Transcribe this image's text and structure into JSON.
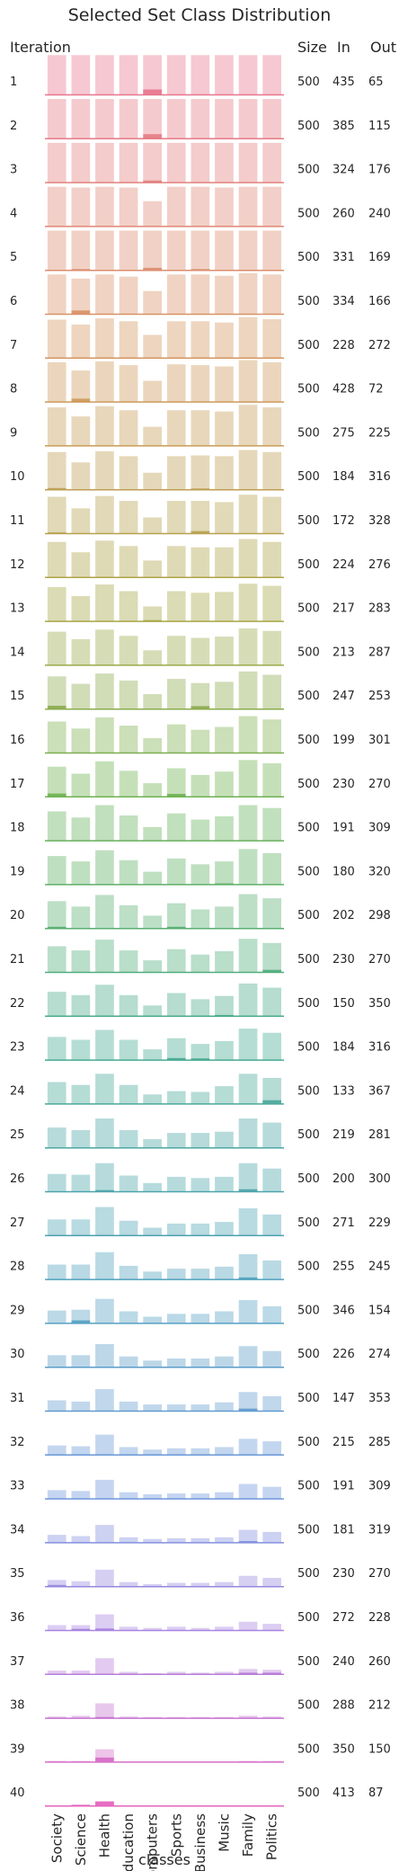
{
  "title": "Selected Set Class Distribution",
  "headers": {
    "iteration": "Iteration",
    "size": "Size",
    "in": "In",
    "out": "Out"
  },
  "chart_data": {
    "type": "bar",
    "title": "Selected Set Class Distribution",
    "xlabel": "classes",
    "ylabel": "Iteration",
    "categories": [
      "Society",
      "Science",
      "Health",
      "Education",
      "Computers",
      "Sports",
      "Business",
      "Music",
      "Family",
      "Politics"
    ],
    "legend": "none",
    "grid": false,
    "note": "Per iteration: background bars = class distribution of the full pool; dark bars = class distribution of samples added in that iteration",
    "iterations": [
      {
        "iteration": 1,
        "size": 500,
        "in": 435,
        "out": 65,
        "pool": [
          0.95,
          0.95,
          0.95,
          0.95,
          0.95,
          0.95,
          0.95,
          0.95,
          0.95,
          0.95
        ],
        "added": [
          0,
          0,
          0,
          0,
          0.12,
          0,
          0,
          0,
          0,
          0
        ]
      },
      {
        "iteration": 2,
        "size": 500,
        "in": 385,
        "out": 115,
        "pool": [
          0.95,
          0.95,
          0.95,
          0.95,
          0.95,
          0.95,
          0.95,
          0.95,
          0.95,
          0.95
        ],
        "added": [
          0,
          0,
          0,
          0,
          0.1,
          0,
          0,
          0,
          0,
          0
        ]
      },
      {
        "iteration": 3,
        "size": 500,
        "in": 324,
        "out": 176,
        "pool": [
          0.95,
          0.95,
          0.95,
          0.95,
          0.95,
          0.95,
          0.95,
          0.95,
          0.95,
          0.95
        ],
        "added": [
          0,
          0,
          0,
          0,
          0.04,
          0,
          0,
          0,
          0,
          0
        ]
      },
      {
        "iteration": 4,
        "size": 500,
        "in": 260,
        "out": 240,
        "pool": [
          0.95,
          0.93,
          0.95,
          0.93,
          0.6,
          0.95,
          0.95,
          0.93,
          0.95,
          0.95
        ],
        "added": [
          0,
          0,
          0,
          0,
          0,
          0,
          0,
          0,
          0,
          0
        ]
      },
      {
        "iteration": 5,
        "size": 500,
        "in": 331,
        "out": 169,
        "pool": [
          0.95,
          0.95,
          0.95,
          0.95,
          0.95,
          0.95,
          0.95,
          0.95,
          0.95,
          0.95
        ],
        "added": [
          0,
          0.02,
          0,
          0,
          0.05,
          0,
          0.02,
          0,
          0,
          0
        ]
      },
      {
        "iteration": 6,
        "size": 500,
        "in": 334,
        "out": 166,
        "pool": [
          0.95,
          0.85,
          0.95,
          0.9,
          0.55,
          0.95,
          0.95,
          0.92,
          0.98,
          0.95
        ],
        "added": [
          0,
          0.08,
          0,
          0,
          0,
          0,
          0,
          0,
          0,
          0
        ]
      },
      {
        "iteration": 7,
        "size": 500,
        "in": 228,
        "out": 272,
        "pool": [
          0.92,
          0.8,
          0.95,
          0.88,
          0.55,
          0.88,
          0.88,
          0.85,
          0.98,
          0.93
        ],
        "added": [
          0,
          0,
          0,
          0,
          0,
          0,
          0,
          0,
          0,
          0
        ]
      },
      {
        "iteration": 8,
        "size": 500,
        "in": 428,
        "out": 72,
        "pool": [
          0.95,
          0.75,
          0.97,
          0.88,
          0.5,
          0.9,
          0.88,
          0.85,
          1.0,
          0.95
        ],
        "added": [
          0,
          0.07,
          0,
          0,
          0,
          0,
          0,
          0,
          0,
          0
        ]
      },
      {
        "iteration": 9,
        "size": 500,
        "in": 275,
        "out": 225,
        "pool": [
          0.92,
          0.7,
          0.95,
          0.85,
          0.45,
          0.85,
          0.85,
          0.82,
          0.98,
          0.92
        ],
        "added": [
          0,
          0,
          0,
          0,
          0,
          0,
          0,
          0,
          0,
          0
        ]
      },
      {
        "iteration": 10,
        "size": 500,
        "in": 184,
        "out": 316,
        "pool": [
          0.9,
          0.65,
          0.92,
          0.8,
          0.4,
          0.8,
          0.82,
          0.8,
          0.95,
          0.9
        ],
        "added": [
          0.03,
          0,
          0,
          0,
          0,
          0,
          0.02,
          0,
          0,
          0
        ]
      },
      {
        "iteration": 11,
        "size": 500,
        "in": 172,
        "out": 328,
        "pool": [
          0.88,
          0.6,
          0.9,
          0.78,
          0.38,
          0.78,
          0.78,
          0.75,
          0.93,
          0.88
        ],
        "added": [
          0.02,
          0,
          0,
          0,
          0,
          0,
          0.05,
          0,
          0,
          0
        ]
      },
      {
        "iteration": 12,
        "size": 500,
        "in": 224,
        "out": 276,
        "pool": [
          0.85,
          0.6,
          0.88,
          0.75,
          0.4,
          0.75,
          0.72,
          0.72,
          0.92,
          0.85
        ],
        "added": [
          0,
          0,
          0,
          0,
          0,
          0,
          0,
          0,
          0,
          0
        ]
      },
      {
        "iteration": 13,
        "size": 500,
        "in": 217,
        "out": 283,
        "pool": [
          0.82,
          0.6,
          0.88,
          0.72,
          0.35,
          0.72,
          0.68,
          0.7,
          0.9,
          0.85
        ],
        "added": [
          0,
          0,
          0,
          0,
          0.02,
          0,
          0,
          0,
          0,
          0
        ]
      },
      {
        "iteration": 14,
        "size": 500,
        "in": 213,
        "out": 287,
        "pool": [
          0.8,
          0.62,
          0.85,
          0.7,
          0.35,
          0.7,
          0.65,
          0.68,
          0.88,
          0.82
        ],
        "added": [
          0,
          0,
          0,
          0,
          0,
          0,
          0,
          0,
          0,
          0
        ]
      },
      {
        "iteration": 15,
        "size": 500,
        "in": 247,
        "out": 253,
        "pool": [
          0.78,
          0.6,
          0.85,
          0.68,
          0.35,
          0.72,
          0.62,
          0.65,
          0.9,
          0.82
        ],
        "added": [
          0.07,
          0,
          0,
          0,
          0,
          0,
          0.06,
          0,
          0,
          0
        ]
      },
      {
        "iteration": 16,
        "size": 500,
        "in": 199,
        "out": 301,
        "pool": [
          0.75,
          0.58,
          0.85,
          0.65,
          0.35,
          0.68,
          0.55,
          0.62,
          0.88,
          0.8
        ],
        "added": [
          0,
          0,
          0,
          0,
          0,
          0,
          0,
          0,
          0,
          0
        ]
      },
      {
        "iteration": 17,
        "size": 500,
        "in": 230,
        "out": 270,
        "pool": [
          0.72,
          0.55,
          0.85,
          0.62,
          0.32,
          0.68,
          0.52,
          0.6,
          0.88,
          0.8
        ],
        "added": [
          0.07,
          0,
          0,
          0,
          0,
          0.06,
          0,
          0,
          0,
          0
        ]
      },
      {
        "iteration": 18,
        "size": 500,
        "in": 191,
        "out": 309,
        "pool": [
          0.7,
          0.55,
          0.85,
          0.6,
          0.32,
          0.65,
          0.5,
          0.58,
          0.85,
          0.78
        ],
        "added": [
          0,
          0,
          0,
          0,
          0,
          0,
          0,
          0,
          0,
          0
        ]
      },
      {
        "iteration": 19,
        "size": 500,
        "in": 180,
        "out": 320,
        "pool": [
          0.68,
          0.55,
          0.82,
          0.58,
          0.3,
          0.62,
          0.48,
          0.55,
          0.85,
          0.75
        ],
        "added": [
          0,
          0,
          0,
          0,
          0,
          0,
          0,
          0.02,
          0,
          0
        ]
      },
      {
        "iteration": 20,
        "size": 500,
        "in": 202,
        "out": 298,
        "pool": [
          0.65,
          0.52,
          0.8,
          0.55,
          0.3,
          0.6,
          0.45,
          0.52,
          0.82,
          0.72
        ],
        "added": [
          0.03,
          0,
          0,
          0,
          0,
          0.03,
          0,
          0,
          0,
          0
        ]
      },
      {
        "iteration": 21,
        "size": 500,
        "in": 230,
        "out": 270,
        "pool": [
          0.62,
          0.52,
          0.78,
          0.52,
          0.28,
          0.55,
          0.42,
          0.5,
          0.8,
          0.7
        ],
        "added": [
          0,
          0,
          0,
          0,
          0,
          0,
          0,
          0,
          0,
          0.05
        ]
      },
      {
        "iteration": 22,
        "size": 500,
        "in": 150,
        "out": 350,
        "pool": [
          0.58,
          0.5,
          0.75,
          0.5,
          0.25,
          0.55,
          0.4,
          0.48,
          0.78,
          0.68
        ],
        "added": [
          0,
          0,
          0,
          0,
          0,
          0,
          0,
          0.02,
          0,
          0
        ]
      },
      {
        "iteration": 23,
        "size": 500,
        "in": 184,
        "out": 316,
        "pool": [
          0.55,
          0.48,
          0.72,
          0.48,
          0.25,
          0.52,
          0.38,
          0.45,
          0.75,
          0.65
        ],
        "added": [
          0,
          0,
          0,
          0,
          0,
          0.04,
          0.03,
          0,
          0,
          0
        ]
      },
      {
        "iteration": 24,
        "size": 500,
        "in": 133,
        "out": 367,
        "pool": [
          0.52,
          0.45,
          0.72,
          0.45,
          0.22,
          0.3,
          0.28,
          0.42,
          0.72,
          0.62
        ],
        "added": [
          0,
          0,
          0,
          0,
          0,
          0,
          0,
          0,
          0,
          0.08
        ]
      },
      {
        "iteration": 25,
        "size": 500,
        "in": 219,
        "out": 281,
        "pool": [
          0.48,
          0.42,
          0.7,
          0.42,
          0.2,
          0.35,
          0.35,
          0.38,
          0.7,
          0.6
        ],
        "added": [
          0,
          0,
          0,
          0,
          0,
          0,
          0,
          0,
          0,
          0
        ]
      },
      {
        "iteration": 26,
        "size": 500,
        "in": 200,
        "out": 300,
        "pool": [
          0.42,
          0.4,
          0.68,
          0.38,
          0.2,
          0.35,
          0.32,
          0.35,
          0.68,
          0.55
        ],
        "added": [
          0,
          0,
          0.03,
          0,
          0,
          0,
          0,
          0,
          0.05,
          0
        ]
      },
      {
        "iteration": 27,
        "size": 500,
        "in": 271,
        "out": 229,
        "pool": [
          0.38,
          0.38,
          0.68,
          0.35,
          0.18,
          0.28,
          0.28,
          0.32,
          0.65,
          0.5
        ],
        "added": [
          0,
          0,
          0,
          0,
          0,
          0,
          0,
          0,
          0,
          0
        ]
      },
      {
        "iteration": 28,
        "size": 500,
        "in": 255,
        "out": 245,
        "pool": [
          0.35,
          0.35,
          0.65,
          0.32,
          0.18,
          0.25,
          0.25,
          0.3,
          0.6,
          0.45
        ],
        "added": [
          0,
          0,
          0,
          0,
          0,
          0,
          0,
          0,
          0.04,
          0
        ]
      },
      {
        "iteration": 29,
        "size": 500,
        "in": 346,
        "out": 154,
        "pool": [
          0.3,
          0.32,
          0.58,
          0.28,
          0.15,
          0.22,
          0.22,
          0.28,
          0.55,
          0.4
        ],
        "added": [
          0,
          0.06,
          0,
          0,
          0,
          0,
          0,
          0,
          0,
          0
        ]
      },
      {
        "iteration": 30,
        "size": 500,
        "in": 226,
        "out": 274,
        "pool": [
          0.28,
          0.28,
          0.55,
          0.25,
          0.15,
          0.2,
          0.2,
          0.25,
          0.5,
          0.38
        ],
        "added": [
          0,
          0,
          0,
          0,
          0,
          0,
          0,
          0,
          0,
          0
        ]
      },
      {
        "iteration": 31,
        "size": 500,
        "in": 147,
        "out": 353,
        "pool": [
          0.25,
          0.22,
          0.52,
          0.22,
          0.15,
          0.15,
          0.15,
          0.2,
          0.45,
          0.35
        ],
        "added": [
          0,
          0,
          0,
          0,
          0,
          0,
          0,
          0,
          0.05,
          0
        ]
      },
      {
        "iteration": 32,
        "size": 500,
        "in": 215,
        "out": 285,
        "pool": [
          0.22,
          0.2,
          0.48,
          0.18,
          0.12,
          0.15,
          0.15,
          0.18,
          0.38,
          0.32
        ],
        "added": [
          0,
          0,
          0,
          0,
          0,
          0,
          0,
          0,
          0,
          0
        ]
      },
      {
        "iteration": 33,
        "size": 500,
        "in": 191,
        "out": 309,
        "pool": [
          0.2,
          0.18,
          0.45,
          0.15,
          0.1,
          0.12,
          0.12,
          0.15,
          0.35,
          0.28
        ],
        "added": [
          0,
          0,
          0,
          0,
          0,
          0,
          0,
          0,
          0,
          0
        ]
      },
      {
        "iteration": 34,
        "size": 500,
        "in": 181,
        "out": 319,
        "pool": [
          0.18,
          0.15,
          0.42,
          0.12,
          0.08,
          0.1,
          0.1,
          0.12,
          0.3,
          0.25
        ],
        "added": [
          0,
          0,
          0,
          0,
          0,
          0,
          0,
          0,
          0.03,
          0
        ]
      },
      {
        "iteration": 35,
        "size": 500,
        "in": 230,
        "out": 270,
        "pool": [
          0.15,
          0.12,
          0.4,
          0.1,
          0.05,
          0.08,
          0.08,
          0.1,
          0.25,
          0.2
        ],
        "added": [
          0.03,
          0,
          0,
          0,
          0,
          0,
          0,
          0,
          0,
          0
        ]
      },
      {
        "iteration": 36,
        "size": 500,
        "in": 272,
        "out": 228,
        "pool": [
          0.12,
          0.12,
          0.38,
          0.08,
          0.05,
          0.08,
          0.05,
          0.08,
          0.2,
          0.15
        ],
        "added": [
          0,
          0.03,
          0.04,
          0,
          0,
          0,
          0,
          0,
          0,
          0
        ]
      },
      {
        "iteration": 37,
        "size": 500,
        "in": 240,
        "out": 260,
        "pool": [
          0.08,
          0.08,
          0.38,
          0.05,
          0.02,
          0.05,
          0.03,
          0.05,
          0.12,
          0.1
        ],
        "added": [
          0,
          0,
          0,
          0,
          0,
          0,
          0,
          0,
          0.03,
          0.03
        ]
      },
      {
        "iteration": 38,
        "size": 500,
        "in": 288,
        "out": 212,
        "pool": [
          0.03,
          0.05,
          0.35,
          0.03,
          0.02,
          0.02,
          0.02,
          0.02,
          0.05,
          0.03
        ],
        "added": [
          0,
          0,
          0.02,
          0,
          0,
          0,
          0,
          0,
          0,
          0
        ]
      },
      {
        "iteration": 39,
        "size": 500,
        "in": 350,
        "out": 150,
        "pool": [
          0.02,
          0.02,
          0.3,
          0,
          0,
          0,
          0,
          0,
          0.02,
          0.02
        ],
        "added": [
          0,
          0,
          0.1,
          0,
          0,
          0,
          0,
          0,
          0,
          0
        ]
      },
      {
        "iteration": 40,
        "size": 500,
        "in": 413,
        "out": 87,
        "pool": [
          0,
          0,
          0.1,
          0,
          0,
          0,
          0,
          0,
          0,
          0
        ],
        "added": [
          0,
          0.02,
          0.1,
          0,
          0,
          0,
          0,
          0,
          0,
          0
        ]
      }
    ]
  }
}
